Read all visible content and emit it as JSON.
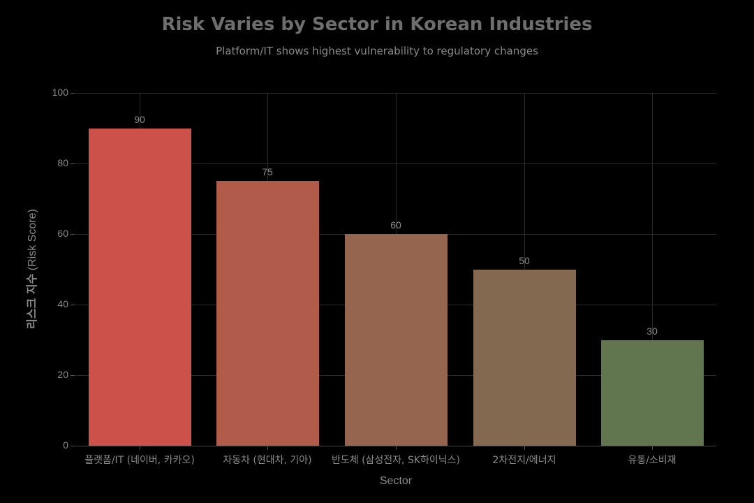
{
  "chart_data": {
    "type": "bar",
    "title": "Risk Varies by Sector in Korean Industries",
    "subtitle": "Platform/IT shows highest vulnerability to regulatory changes",
    "xlabel": "Sector",
    "ylabel_ko": "리스크 지수",
    "ylabel_en": "(Risk Score)",
    "ylabel": "리스크 지수 (Risk Score)",
    "ylim": [
      0,
      100
    ],
    "yticks": [
      0,
      20,
      40,
      60,
      80,
      100
    ],
    "grid": true,
    "legend": "none",
    "categories": [
      "플랫폼/IT (네이버, 카카오)",
      "자동차 (현대차, 기아)",
      "반도체 (삼성전자, SK하이닉스)",
      "2차전지/에너지",
      "유통/소비재"
    ],
    "values": [
      90,
      75,
      60,
      50,
      30
    ],
    "colors": [
      "#cb514a",
      "#b15b4b",
      "#95654f",
      "#82694f",
      "#61754f"
    ],
    "data_labels": [
      "90",
      "75",
      "60",
      "50",
      "30"
    ]
  },
  "style": {
    "background": "#000000",
    "text_color": "#8a8a8a",
    "title_color": "#6e6e6e",
    "grid_color": "#2b2b2b"
  }
}
